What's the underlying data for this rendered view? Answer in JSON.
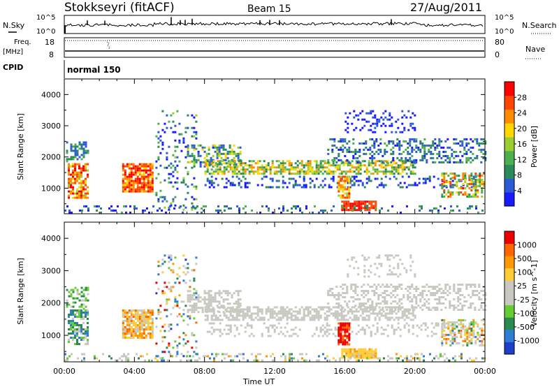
{
  "header": {
    "station": "Stokkseyri (fitACF)",
    "beam": "Beam 15",
    "date": "27/Aug/2011"
  },
  "noise_panel": {
    "left_label": "N.Sky",
    "left_ticks": [
      "10^5",
      "10^0"
    ],
    "right_ticks": [
      "10^5",
      "10^0"
    ],
    "right_label": "N.Search"
  },
  "freq_panel": {
    "left_label_1": "Freq.",
    "left_label_2": "[MHz]",
    "left_ticks": [
      "18",
      "8"
    ],
    "right_ticks": [
      "80",
      "0"
    ],
    "right_label": "Nave"
  },
  "cpid_panel": {
    "label": "CPID",
    "mode": "normal 150"
  },
  "chart_data": [
    {
      "type": "heatmap",
      "name": "power",
      "ylabel": "Slant Range [km]",
      "yticks": [
        "4000",
        "3000",
        "2000",
        "1000"
      ],
      "ylim": [
        180,
        4500
      ],
      "xlim": [
        0,
        24
      ],
      "colorbar_label": "Power [dB]",
      "colorbar_ticks": [
        "28",
        "24",
        "20",
        "16",
        "12",
        "8",
        "4"
      ],
      "colors": [
        "#1a1aff",
        "#2d5bd6",
        "#2a8a5a",
        "#4cb050",
        "#9acd32",
        "#ffd700",
        "#ff8c00",
        "#ff4500",
        "#ff0000"
      ]
    },
    {
      "type": "heatmap",
      "name": "velocity",
      "ylabel": "Slant Range [km]",
      "yticks": [
        "4000",
        "3000",
        "2000",
        "1000"
      ],
      "ylim": [
        180,
        4500
      ],
      "xlim": [
        0,
        24
      ],
      "xlabel": "Time UT",
      "xticks": [
        "00:00",
        "04:00",
        "08:00",
        "12:00",
        "16:00",
        "20:00",
        "00:00"
      ],
      "colorbar_label": "Velocity [m s^-1]",
      "colorbar_ticks": [
        "1000",
        "500",
        "100",
        "25",
        "-25",
        "-100",
        "-500",
        "-1000"
      ],
      "colors": [
        "#1e3fc8",
        "#2e7ed8",
        "#2a8a50",
        "#66cc33",
        "#c8c8c0",
        "#c8c8c0",
        "#ffcc33",
        "#ff9900",
        "#ff6600",
        "#ee0000"
      ]
    }
  ]
}
